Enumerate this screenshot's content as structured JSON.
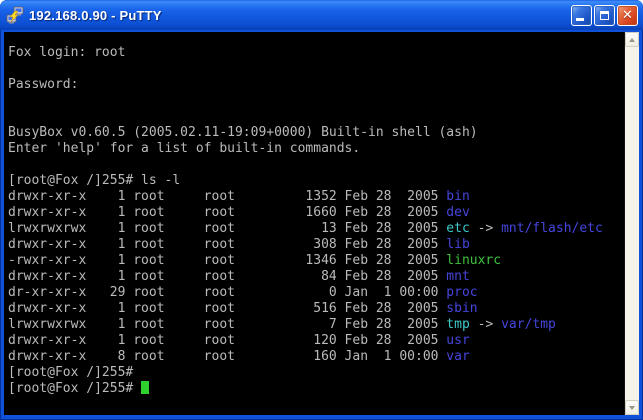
{
  "window": {
    "title": "192.168.0.90 - PuTTY",
    "close_glyph": "✕"
  },
  "icons": {
    "app": "putty-two-terminals",
    "minimize": "minimize-bar",
    "maximize": "restore-square",
    "close": "x-cross",
    "scroll_up": "chevron-up",
    "scroll_down": "chevron-down"
  },
  "terminal": {
    "colors": {
      "fg": "#BBBBBB",
      "dir": "#4545DC",
      "link": "#3FC8C8",
      "exec": "#3CC23C",
      "cursor": "#2FD12F",
      "bg": "#000000"
    },
    "lines": [
      {
        "segments": [
          {
            "t": "Fox login: root",
            "c": "fg"
          }
        ]
      },
      {
        "segments": []
      },
      {
        "segments": [
          {
            "t": "Password:",
            "c": "fg"
          }
        ]
      },
      {
        "segments": []
      },
      {
        "segments": []
      },
      {
        "segments": [
          {
            "t": "BusyBox v0.60.5 (2005.02.11-19:09+0000) Built-in shell (ash)",
            "c": "fg"
          }
        ]
      },
      {
        "segments": [
          {
            "t": "Enter 'help' for a list of built-in commands.",
            "c": "fg"
          }
        ]
      },
      {
        "segments": []
      },
      {
        "segments": [
          {
            "t": "[root@Fox /]255# ls -l",
            "c": "fg"
          }
        ]
      },
      {
        "segments": [
          {
            "t": "drwxr-xr-x    1 root     root         1352 Feb 28  2005 ",
            "c": "fg"
          },
          {
            "t": "bin",
            "c": "dir"
          }
        ]
      },
      {
        "segments": [
          {
            "t": "drwxr-xr-x    1 root     root         1660 Feb 28  2005 ",
            "c": "fg"
          },
          {
            "t": "dev",
            "c": "dir"
          }
        ]
      },
      {
        "segments": [
          {
            "t": "lrwxrwxrwx    1 root     root           13 Feb 28  2005 ",
            "c": "fg"
          },
          {
            "t": "etc",
            "c": "link"
          },
          {
            "t": " -> ",
            "c": "fg"
          },
          {
            "t": "mnt/flash/etc",
            "c": "dir"
          }
        ]
      },
      {
        "segments": [
          {
            "t": "drwxr-xr-x    1 root     root          308 Feb 28  2005 ",
            "c": "fg"
          },
          {
            "t": "lib",
            "c": "dir"
          }
        ]
      },
      {
        "segments": [
          {
            "t": "-rwxr-xr-x    1 root     root         1346 Feb 28  2005 ",
            "c": "fg"
          },
          {
            "t": "linuxrc",
            "c": "exec"
          }
        ]
      },
      {
        "segments": [
          {
            "t": "drwxr-xr-x    1 root     root           84 Feb 28  2005 ",
            "c": "fg"
          },
          {
            "t": "mnt",
            "c": "dir"
          }
        ]
      },
      {
        "segments": [
          {
            "t": "dr-xr-xr-x   29 root     root            0 Jan  1 00:00 ",
            "c": "fg"
          },
          {
            "t": "proc",
            "c": "dir"
          }
        ]
      },
      {
        "segments": [
          {
            "t": "drwxr-xr-x    1 root     root          516 Feb 28  2005 ",
            "c": "fg"
          },
          {
            "t": "sbin",
            "c": "dir"
          }
        ]
      },
      {
        "segments": [
          {
            "t": "lrwxrwxrwx    1 root     root            7 Feb 28  2005 ",
            "c": "fg"
          },
          {
            "t": "tmp",
            "c": "link"
          },
          {
            "t": " -> ",
            "c": "fg"
          },
          {
            "t": "var/tmp",
            "c": "dir"
          }
        ]
      },
      {
        "segments": [
          {
            "t": "drwxr-xr-x    1 root     root          120 Feb 28  2005 ",
            "c": "fg"
          },
          {
            "t": "usr",
            "c": "dir"
          }
        ]
      },
      {
        "segments": [
          {
            "t": "drwxr-xr-x    8 root     root          160 Jan  1 00:00 ",
            "c": "fg"
          },
          {
            "t": "var",
            "c": "dir"
          }
        ]
      },
      {
        "segments": [
          {
            "t": "[root@Fox /]255#",
            "c": "fg"
          }
        ]
      },
      {
        "segments": [
          {
            "t": "[root@Fox /]255# ",
            "c": "fg"
          }
        ],
        "cursor": true
      }
    ]
  }
}
